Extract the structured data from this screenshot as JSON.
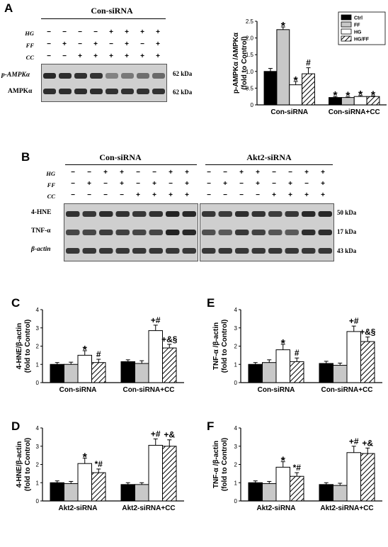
{
  "figure": {
    "panel_letters": {
      "A": "A",
      "B": "B",
      "C": "C",
      "D": "D",
      "E": "E",
      "F": "F"
    },
    "treatments": {
      "hg": "HG",
      "ff": "FF",
      "cc": "CC"
    }
  },
  "panelA": {
    "blot_title": "Con-siRNA",
    "signs": {
      "HG": [
        "−",
        "−",
        "−",
        "−",
        "+",
        "+",
        "+",
        "+"
      ],
      "FF": [
        "−",
        "+",
        "−",
        "+",
        "−",
        "+",
        "−",
        "+"
      ],
      "CC": [
        "−",
        "−",
        "+",
        "+",
        "+",
        "+",
        "+",
        "+"
      ]
    },
    "rows": [
      {
        "label": "p-AMPKα",
        "kda": "62 kDa"
      },
      {
        "label": "AMPKα",
        "kda": "62 kDa"
      }
    ]
  },
  "panelB": {
    "blot_titles": [
      "Con-siRNA",
      "Akt2-siRNA"
    ],
    "signs": {
      "HG": [
        "−",
        "−",
        "+",
        "+",
        "−",
        "−",
        "+",
        "+"
      ],
      "FF": [
        "−",
        "+",
        "−",
        "+",
        "−",
        "+",
        "−",
        "+"
      ],
      "CC": [
        "−",
        "−",
        "−",
        "−",
        "+",
        "+",
        "+",
        "+"
      ]
    },
    "rows": [
      {
        "label": "4-HNE",
        "kda": "50 kDa"
      },
      {
        "label": "TNF-α",
        "kda": "17 kDa"
      },
      {
        "label": "β-actin",
        "kda": "43 kDa"
      }
    ]
  },
  "legend": [
    "Ctrl",
    "FF",
    "HG",
    "HG/FF"
  ],
  "colors": {
    "Ctrl": "#000000",
    "FF": "#c8c8c8",
    "HG": "#ffffff",
    "HG/FF": "hatch"
  },
  "chart_data": [
    {
      "id": "A",
      "type": "bar",
      "ylabel": "p-AMPKα /AMPKα\n(fold to Control)",
      "ylim": [
        0,
        2.5
      ],
      "yticks": [
        0,
        0.5,
        1.0,
        1.5,
        2.0,
        2.5
      ],
      "tick_labels": [
        "0",
        "0.5",
        "1.0",
        "1.5",
        "2.0",
        "2.5"
      ],
      "categories": [
        "Con-siRNA",
        "Con-siRNA+CC"
      ],
      "series": [
        {
          "name": "Ctrl",
          "values": [
            1.0,
            0.22
          ],
          "err": [
            0.09,
            0.03
          ],
          "annot": [
            "",
            "*"
          ]
        },
        {
          "name": "FF",
          "values": [
            2.25,
            0.22
          ],
          "err": [
            0.08,
            0.02
          ],
          "annot": [
            "*",
            "*"
          ]
        },
        {
          "name": "HG",
          "values": [
            0.6,
            0.25
          ],
          "err": [
            0.1,
            0.03
          ],
          "annot": [
            "*",
            "*"
          ]
        },
        {
          "name": "HG/FF",
          "values": [
            0.93,
            0.25
          ],
          "err": [
            0.18,
            0.02
          ],
          "annot": [
            "#",
            "*"
          ]
        }
      ]
    },
    {
      "id": "C",
      "type": "bar",
      "ylabel": "4-HNE/β-actin\n(fold to Control)",
      "ylim": [
        0,
        4
      ],
      "yticks": [
        0,
        1,
        2,
        3,
        4
      ],
      "tick_labels": [
        "0",
        "1",
        "2",
        "3",
        "4"
      ],
      "categories": [
        "Con-siRNA",
        "Con-siRNA+CC"
      ],
      "series": [
        {
          "name": "Ctrl",
          "values": [
            1.0,
            1.15
          ],
          "err": [
            0.1,
            0.1
          ],
          "annot": [
            "",
            ""
          ]
        },
        {
          "name": "FF",
          "values": [
            1.0,
            1.05
          ],
          "err": [
            0.12,
            0.15
          ],
          "annot": [
            "",
            ""
          ]
        },
        {
          "name": "HG",
          "values": [
            1.5,
            2.85
          ],
          "err": [
            0.25,
            0.3
          ],
          "annot": [
            "*",
            "+#"
          ]
        },
        {
          "name": "HG/FF",
          "values": [
            1.1,
            1.9
          ],
          "err": [
            0.18,
            0.2
          ],
          "annot": [
            "#",
            "+&§"
          ]
        }
      ]
    },
    {
      "id": "E",
      "type": "bar",
      "ylabel": "TNF-α /β-actin\n(fold to Control)",
      "ylim": [
        0,
        4
      ],
      "yticks": [
        0,
        1,
        2,
        3,
        4
      ],
      "tick_labels": [
        "0",
        "1",
        "2",
        "3",
        "4"
      ],
      "categories": [
        "Con-siRNA",
        "Con-siRNA+CC"
      ],
      "series": [
        {
          "name": "Ctrl",
          "values": [
            1.0,
            1.05
          ],
          "err": [
            0.1,
            0.12
          ],
          "annot": [
            "",
            ""
          ]
        },
        {
          "name": "FF",
          "values": [
            1.1,
            0.95
          ],
          "err": [
            0.15,
            0.12
          ],
          "annot": [
            "",
            ""
          ]
        },
        {
          "name": "HG",
          "values": [
            1.8,
            2.8
          ],
          "err": [
            0.3,
            0.3
          ],
          "annot": [
            "*",
            "+#"
          ]
        },
        {
          "name": "HG/FF",
          "values": [
            1.15,
            2.25
          ],
          "err": [
            0.2,
            0.25
          ],
          "annot": [
            "#",
            "+&§"
          ]
        }
      ]
    },
    {
      "id": "D",
      "type": "bar",
      "ylabel": "4-HNE/β-actin\n(fold to Control)",
      "ylim": [
        0,
        4
      ],
      "yticks": [
        0,
        1,
        2,
        3,
        4
      ],
      "tick_labels": [
        "0",
        "1",
        "2",
        "3",
        "4"
      ],
      "categories": [
        "Akt2-siRNA",
        "Akt2-siRNA+CC"
      ],
      "series": [
        {
          "name": "Ctrl",
          "values": [
            1.0,
            0.9
          ],
          "err": [
            0.1,
            0.1
          ],
          "annot": [
            "",
            ""
          ]
        },
        {
          "name": "FF",
          "values": [
            0.95,
            0.9
          ],
          "err": [
            0.12,
            0.1
          ],
          "annot": [
            "",
            ""
          ]
        },
        {
          "name": "HG",
          "values": [
            2.05,
            3.05
          ],
          "err": [
            0.3,
            0.35
          ],
          "annot": [
            "*",
            "+#"
          ]
        },
        {
          "name": "HG/FF",
          "values": [
            1.55,
            3.0
          ],
          "err": [
            0.2,
            0.35
          ],
          "annot": [
            "*#",
            "+&"
          ]
        }
      ]
    },
    {
      "id": "F",
      "type": "bar",
      "ylabel": "TNF-α /β-actin\n(fold to Control)",
      "ylim": [
        0,
        4
      ],
      "yticks": [
        0,
        1,
        2,
        3,
        4
      ],
      "tick_labels": [
        "0",
        "1",
        "2",
        "3",
        "4"
      ],
      "categories": [
        "Akt2-siRNA",
        "Akt2-siRNA+CC"
      ],
      "series": [
        {
          "name": "Ctrl",
          "values": [
            1.0,
            0.9
          ],
          "err": [
            0.1,
            0.1
          ],
          "annot": [
            "",
            ""
          ]
        },
        {
          "name": "FF",
          "values": [
            0.95,
            0.85
          ],
          "err": [
            0.12,
            0.12
          ],
          "annot": [
            "",
            ""
          ]
        },
        {
          "name": "HG",
          "values": [
            1.85,
            2.65
          ],
          "err": [
            0.3,
            0.35
          ],
          "annot": [
            "*",
            "+#"
          ]
        },
        {
          "name": "HG/FF",
          "values": [
            1.35,
            2.6
          ],
          "err": [
            0.2,
            0.3
          ],
          "annot": [
            "*#",
            "+&"
          ]
        }
      ]
    }
  ]
}
